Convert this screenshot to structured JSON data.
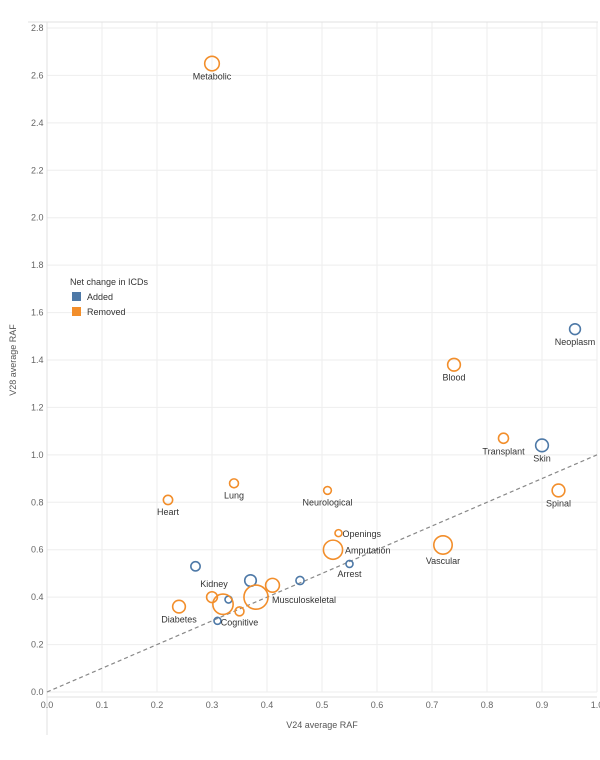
{
  "chart_data": {
    "type": "scatter",
    "xlabel": "V24 average RAF",
    "ylabel": "V28 average RAF",
    "xlim": [
      0.0,
      1.0
    ],
    "ylim": [
      0.0,
      2.8
    ],
    "xticks": [
      "0.0",
      "0.1",
      "0.2",
      "0.3",
      "0.4",
      "0.5",
      "0.6",
      "0.7",
      "0.8",
      "0.9",
      "1.0"
    ],
    "yticks": [
      "0.0",
      "0.2",
      "0.4",
      "0.6",
      "0.8",
      "1.0",
      "1.2",
      "1.4",
      "1.6",
      "1.8",
      "2.0",
      "2.2",
      "2.4",
      "2.6",
      "2.8"
    ],
    "reference_line": "y = x (dashed)",
    "grid": true,
    "colors": {
      "Added": "#4e79a7",
      "Removed": "#f28e2b"
    },
    "legend": {
      "title": "Net change in ICDs",
      "position": "left",
      "items": [
        {
          "label": "Added",
          "color": "#4e79a7"
        },
        {
          "label": "Removed",
          "color": "#f28e2b"
        }
      ]
    },
    "points": [
      {
        "label": "Metabolic",
        "x": 0.3,
        "y": 2.65,
        "group": "Removed",
        "size": 3
      },
      {
        "label": "Neoplasm",
        "x": 0.96,
        "y": 1.53,
        "group": "Added",
        "size": 2
      },
      {
        "label": "Blood",
        "x": 0.74,
        "y": 1.38,
        "group": "Removed",
        "size": 2.5
      },
      {
        "label": "Transplant",
        "x": 0.83,
        "y": 1.07,
        "group": "Removed",
        "size": 1.8
      },
      {
        "label": "Skin",
        "x": 0.9,
        "y": 1.04,
        "group": "Added",
        "size": 2.5
      },
      {
        "label": "Spinal",
        "x": 0.93,
        "y": 0.85,
        "group": "Removed",
        "size": 2.5
      },
      {
        "label": "Lung",
        "x": 0.34,
        "y": 0.88,
        "group": "Removed",
        "size": 1.5
      },
      {
        "label": "Neurological",
        "x": 0.51,
        "y": 0.85,
        "group": "Removed",
        "size": 1.2
      },
      {
        "label": "Heart",
        "x": 0.22,
        "y": 0.81,
        "group": "Removed",
        "size": 1.6
      },
      {
        "label": "Openings",
        "x": 0.53,
        "y": 0.67,
        "group": "Removed",
        "size": 1.0
      },
      {
        "label": "Vascular",
        "x": 0.72,
        "y": 0.62,
        "group": "Removed",
        "size": 4
      },
      {
        "label": "Amputation",
        "x": 0.52,
        "y": 0.6,
        "group": "Removed",
        "size": 4.2
      },
      {
        "label": "Arrest",
        "x": 0.55,
        "y": 0.54,
        "group": "Added",
        "size": 1.0
      },
      {
        "label": "",
        "x": 0.27,
        "y": 0.53,
        "group": "Added",
        "size": 1.6
      },
      {
        "label": "",
        "x": 0.37,
        "y": 0.47,
        "group": "Added",
        "size": 2.2
      },
      {
        "label": "",
        "x": 0.46,
        "y": 0.47,
        "group": "Added",
        "size": 1.3
      },
      {
        "label": "",
        "x": 0.41,
        "y": 0.45,
        "group": "Removed",
        "size": 2.8
      },
      {
        "label": "Musculoskeletal",
        "x": 0.38,
        "y": 0.4,
        "group": "Removed",
        "size": 5.5
      },
      {
        "label": "Kidney",
        "x": 0.3,
        "y": 0.4,
        "group": "Removed",
        "size": 2.0
      },
      {
        "label": "",
        "x": 0.33,
        "y": 0.39,
        "group": "Added",
        "size": 1.0
      },
      {
        "label": "",
        "x": 0.32,
        "y": 0.37,
        "group": "Removed",
        "size": 4.5
      },
      {
        "label": "Diabetes",
        "x": 0.24,
        "y": 0.36,
        "group": "Removed",
        "size": 2.5
      },
      {
        "label": "Cognitive",
        "x": 0.35,
        "y": 0.34,
        "group": "Removed",
        "size": 1.5
      },
      {
        "label": "",
        "x": 0.31,
        "y": 0.3,
        "group": "Added",
        "size": 1.0
      }
    ]
  }
}
